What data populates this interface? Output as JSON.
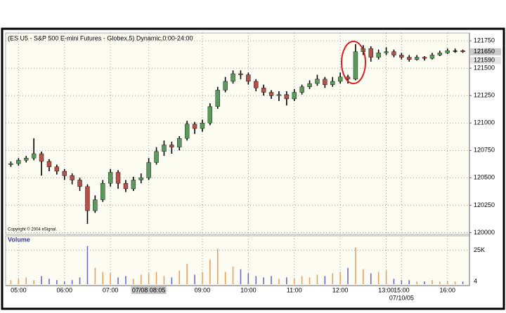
{
  "chart_data": {
    "type": "candlestick",
    "title": "(ES U5 - S&P 500 E-mini Futures - Globex,5) Dynamic,0:00-24:00",
    "copyright": "Copyright © 2004 eSignal.",
    "categories": [
      null,
      "05:00",
      null,
      null,
      null,
      null,
      null,
      "06:00",
      null,
      null,
      null,
      null,
      null,
      "07:00",
      null,
      null,
      null,
      null,
      "07/08 08:05",
      null,
      null,
      null,
      null,
      null,
      null,
      "09:00",
      null,
      null,
      null,
      null,
      null,
      "10:00",
      null,
      null,
      null,
      null,
      null,
      "11:00",
      null,
      null,
      null,
      null,
      null,
      "12:00",
      null,
      null,
      null,
      null,
      null,
      "13:00",
      null,
      "15:00",
      null,
      null,
      null,
      null,
      null,
      "16:00",
      null,
      null
    ],
    "x_sublabels": [
      null,
      null,
      null,
      null,
      null,
      null,
      null,
      null,
      null,
      null,
      null,
      null,
      null,
      null,
      null,
      null,
      null,
      null,
      null,
      null,
      null,
      null,
      null,
      null,
      null,
      null,
      null,
      null,
      null,
      null,
      null,
      null,
      null,
      null,
      null,
      null,
      null,
      null,
      null,
      null,
      null,
      null,
      null,
      null,
      null,
      null,
      null,
      null,
      null,
      null,
      null,
      "07/10/05",
      null,
      null,
      null,
      null,
      null,
      null,
      null,
      null
    ],
    "highlighted_category": 18,
    "open": [
      120620,
      120630,
      120660,
      120680,
      120720,
      120650,
      120600,
      120560,
      120520,
      120480,
      120420,
      120200,
      120300,
      120450,
      120550,
      120450,
      120400,
      120480,
      120500,
      120640,
      120740,
      120800,
      120780,
      120860,
      120990,
      120950,
      121000,
      121150,
      121300,
      121380,
      121450,
      121440,
      121380,
      121320,
      121280,
      121250,
      121260,
      121220,
      121280,
      121330,
      121360,
      121400,
      121350,
      121380,
      121420,
      121400,
      121650,
      121680,
      121600,
      121640,
      121650,
      121620,
      121600,
      121580,
      121600,
      121590,
      121620,
      121640,
      121660,
      121660
    ],
    "high": [
      120650,
      120680,
      120700,
      120860,
      120740,
      120670,
      120620,
      120580,
      120540,
      120500,
      120440,
      120340,
      120480,
      120580,
      120570,
      120480,
      120510,
      120540,
      120680,
      120780,
      120840,
      120830,
      120880,
      121020,
      121010,
      121030,
      121180,
      121330,
      121420,
      121480,
      121480,
      121460,
      121400,
      121350,
      121300,
      121290,
      121290,
      121310,
      121350,
      121390,
      121440,
      121420,
      121420,
      121460,
      121440,
      121720,
      121710,
      121700,
      121670,
      121690,
      121670,
      121640,
      121620,
      121620,
      121610,
      121640,
      121660,
      121680,
      121680,
      121670
    ],
    "low": [
      120600,
      120610,
      120640,
      120660,
      120520,
      120560,
      120530,
      120480,
      120440,
      120380,
      120080,
      120180,
      120280,
      120420,
      120400,
      120370,
      120380,
      120450,
      120480,
      120620,
      120700,
      120720,
      120750,
      120840,
      120900,
      120920,
      120980,
      121130,
      121280,
      121360,
      121400,
      121350,
      121290,
      121250,
      121220,
      121200,
      121160,
      121200,
      121260,
      121310,
      121340,
      121320,
      121330,
      121360,
      121360,
      121390,
      121620,
      121560,
      121580,
      121620,
      121600,
      121580,
      121560,
      121570,
      121570,
      121580,
      121610,
      121630,
      121640,
      121640
    ],
    "close": [
      120630,
      120660,
      120680,
      120720,
      120650,
      120600,
      120560,
      120520,
      120480,
      120420,
      120200,
      120300,
      120450,
      120550,
      120450,
      120400,
      120480,
      120500,
      120640,
      120740,
      120800,
      120780,
      120860,
      120990,
      120950,
      121000,
      121150,
      121300,
      121380,
      121450,
      121440,
      121380,
      121320,
      121280,
      121250,
      121260,
      121220,
      121280,
      121330,
      121360,
      121400,
      121350,
      121380,
      121420,
      121400,
      121650,
      121680,
      121600,
      121640,
      121650,
      121620,
      121600,
      121580,
      121600,
      121590,
      121620,
      121640,
      121660,
      121660,
      121650
    ],
    "up_color": "#5a9a5a",
    "down_color": "#b4524a",
    "ylim": [
      119990,
      121815
    ],
    "yticks": [
      120000,
      120250,
      120500,
      120750,
      121000,
      121250,
      121500,
      121750
    ],
    "price_markers": [
      121650,
      121590
    ],
    "grid": true,
    "volume": {
      "title": "Volume",
      "values": [
        3000,
        4000,
        5000,
        3000,
        6000,
        4000,
        3000,
        2000,
        3000,
        5000,
        28000,
        12000,
        9000,
        8000,
        5000,
        6000,
        4000,
        7000,
        8000,
        9000,
        6000,
        5000,
        10000,
        15000,
        7000,
        9000,
        18000,
        26000,
        9000,
        13000,
        11000,
        8000,
        6000,
        5000,
        6000,
        4000,
        5000,
        4000,
        6000,
        5000,
        7000,
        6000,
        8000,
        9000,
        12000,
        27000,
        11000,
        8000,
        9000,
        10000,
        4000,
        3000,
        3000,
        2000,
        2000,
        3000,
        2000,
        2000,
        2000,
        2000
      ],
      "ylim": [
        0,
        35000
      ],
      "yticks": [
        {
          "value": 25000,
          "label": "25K"
        },
        4
      ],
      "up_color": "#e8a060",
      "down_color": "#6a6ac8"
    }
  }
}
